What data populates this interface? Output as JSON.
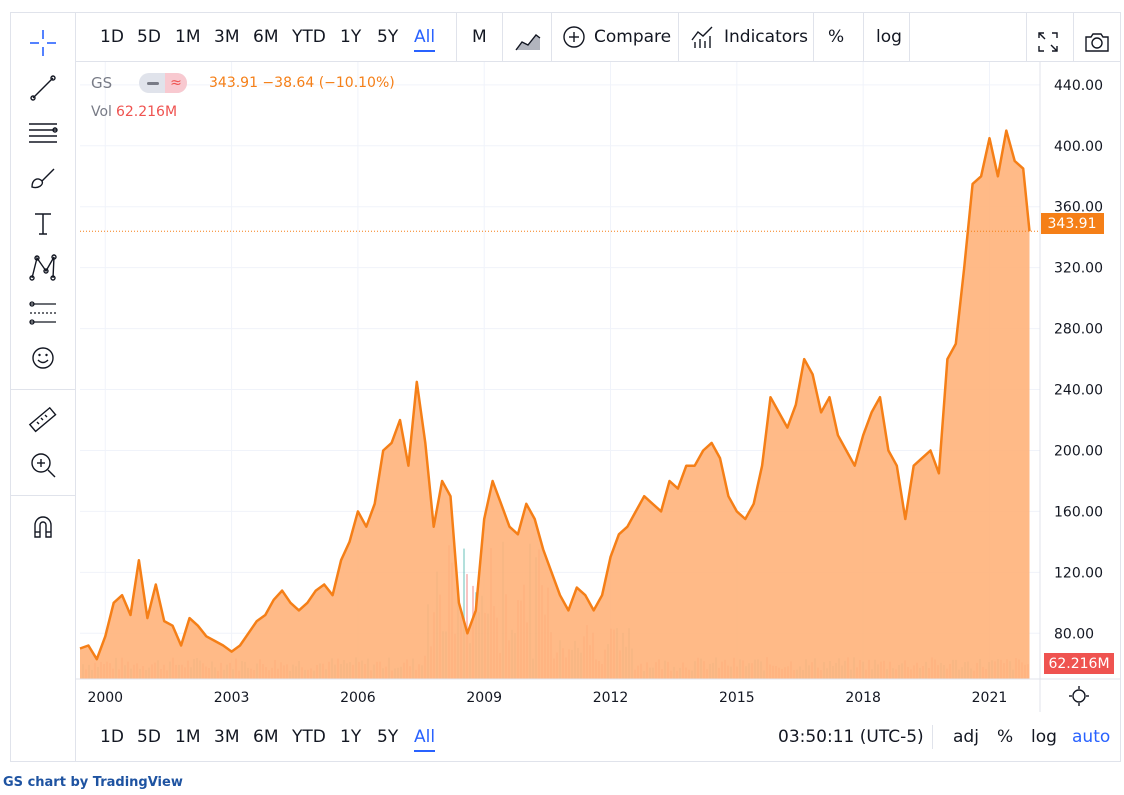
{
  "toolbar_top": {
    "ranges": [
      "1D",
      "5D",
      "1M",
      "3M",
      "6M",
      "YTD",
      "1Y",
      "5Y",
      "All"
    ],
    "active_range": "All",
    "interval": "M",
    "chart_style_icon": "area-chart-icon",
    "compare_label": "Compare",
    "indicators_label": "Indicators",
    "percent_label": "%",
    "log_label": "log",
    "fullscreen_icon": "fullscreen-icon",
    "snapshot_icon": "camera-icon"
  },
  "left_tools": [
    "crosshair-icon",
    "trend-line-icon",
    "fib-retracement-icon",
    "brush-icon",
    "text-icon",
    "pattern-icon",
    "prediction-icon",
    "emoji-icon",
    "ruler-icon",
    "zoom-in-icon",
    "magnet-icon"
  ],
  "legend": {
    "symbol": "GS",
    "values": "343.91 −38.64 (−10.10%)",
    "vol_label": "Vol",
    "vol_value": "62.216M"
  },
  "price_axis": {
    "ticks": [
      "440.00",
      "400.00",
      "360.00",
      "320.00",
      "280.00",
      "240.00",
      "200.00",
      "160.00",
      "120.00",
      "80.00"
    ],
    "last_price_label": "343.91",
    "volume_label": "62.216M"
  },
  "time_axis": {
    "ticks": [
      "2000",
      "2003",
      "2006",
      "2009",
      "2012",
      "2015",
      "2018",
      "2021"
    ]
  },
  "bottombar": {
    "ranges": [
      "1D",
      "5D",
      "1M",
      "3M",
      "6M",
      "YTD",
      "1Y",
      "5Y",
      "All"
    ],
    "active_range": "All",
    "clock": "03:50:11 (UTC-5)",
    "adj_label": "adj",
    "percent_label": "%",
    "log_label": "log",
    "auto_label": "auto"
  },
  "footer": {
    "symbol": "GS",
    "text": "chart by",
    "brand": "TradingView"
  },
  "colors": {
    "line": "#f57f17",
    "area": "#ffb27a",
    "volume_up": "#26a69a",
    "volume_down": "#ef5350",
    "accent": "#2962ff"
  },
  "chart_data": {
    "type": "area",
    "title": "GS",
    "x": [
      1999.4,
      1999.6,
      1999.8,
      2000.0,
      2000.2,
      2000.4,
      2000.6,
      2000.8,
      2001.0,
      2001.2,
      2001.4,
      2001.6,
      2001.8,
      2002.0,
      2002.2,
      2002.4,
      2002.6,
      2002.8,
      2003.0,
      2003.2,
      2003.4,
      2003.6,
      2003.8,
      2004.0,
      2004.2,
      2004.4,
      2004.6,
      2004.8,
      2005.0,
      2005.2,
      2005.4,
      2005.6,
      2005.8,
      2006.0,
      2006.2,
      2006.4,
      2006.6,
      2006.8,
      2007.0,
      2007.2,
      2007.4,
      2007.6,
      2007.8,
      2008.0,
      2008.2,
      2008.4,
      2008.6,
      2008.8,
      2009.0,
      2009.2,
      2009.4,
      2009.6,
      2009.8,
      2010.0,
      2010.2,
      2010.4,
      2010.6,
      2010.8,
      2011.0,
      2011.2,
      2011.4,
      2011.6,
      2011.8,
      2012.0,
      2012.2,
      2012.4,
      2012.6,
      2012.8,
      2013.0,
      2013.2,
      2013.4,
      2013.6,
      2013.8,
      2014.0,
      2014.2,
      2014.4,
      2014.6,
      2014.8,
      2015.0,
      2015.2,
      2015.4,
      2015.6,
      2015.8,
      2016.0,
      2016.2,
      2016.4,
      2016.6,
      2016.8,
      2017.0,
      2017.2,
      2017.4,
      2017.6,
      2017.8,
      2018.0,
      2018.2,
      2018.4,
      2018.6,
      2018.8,
      2019.0,
      2019.2,
      2019.4,
      2019.6,
      2019.8,
      2020.0,
      2020.2,
      2020.4,
      2020.6,
      2020.8,
      2021.0,
      2021.2,
      2021.4,
      2021.6,
      2021.8,
      2021.95
    ],
    "y": [
      70,
      72,
      63,
      78,
      100,
      105,
      92,
      128,
      90,
      112,
      88,
      85,
      72,
      90,
      85,
      78,
      75,
      72,
      68,
      72,
      80,
      88,
      92,
      102,
      108,
      100,
      95,
      100,
      108,
      112,
      105,
      128,
      140,
      160,
      150,
      165,
      200,
      205,
      220,
      190,
      245,
      205,
      150,
      180,
      170,
      100,
      80,
      95,
      155,
      180,
      165,
      150,
      145,
      165,
      155,
      135,
      120,
      105,
      95,
      110,
      105,
      95,
      105,
      130,
      145,
      150,
      160,
      170,
      165,
      160,
      180,
      175,
      190,
      190,
      200,
      205,
      195,
      170,
      160,
      155,
      165,
      190,
      235,
      225,
      215,
      230,
      260,
      250,
      225,
      235,
      210,
      200,
      190,
      210,
      225,
      235,
      200,
      190,
      155,
      190,
      195,
      200,
      185,
      260,
      270,
      320,
      375,
      380,
      405,
      380,
      410,
      390,
      385,
      343.91
    ],
    "xlim": [
      1999.4,
      2022.2
    ],
    "ylim": [
      50,
      455
    ]
  }
}
